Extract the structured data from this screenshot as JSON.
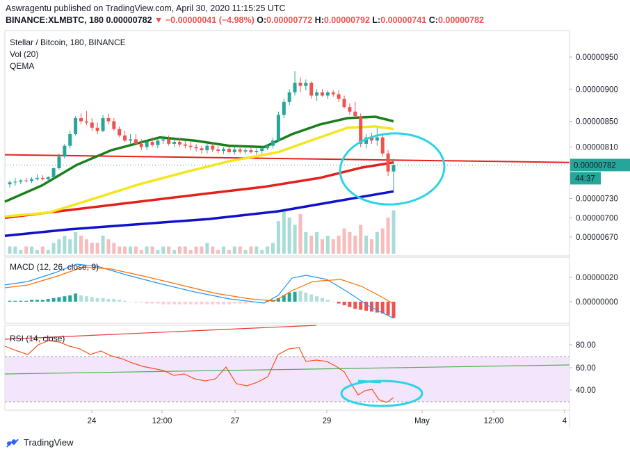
{
  "header": {
    "publisher": "Aswragentu published on TradingView.com, April 30, 2020 11:15:25 UTC",
    "symbol": "BINANCE:XLMBTC, 180",
    "last": "0.00000782",
    "change": "−0.00000041 (−4.98%)",
    "o_label": "O:",
    "o": "0.00000772",
    "h_label": "H:",
    "h": "0.00000792",
    "l_label": "L:",
    "l": "0.00000741",
    "c_label": "C:",
    "c": "0.00000782"
  },
  "legend": {
    "main": "Stellar / Bitcoin, 180, BINANCE",
    "vol": "Vol (20)",
    "qema": "QEMA",
    "macd": "MACD (12, 26, close, 9)",
    "rsi": "RSI (14, close)"
  },
  "price_axis": {
    "ticks": [
      "0.00000950",
      "0.00000900",
      "0.00000850",
      "0.00000810",
      "0.00000730",
      "0.00000700",
      "0.00000670"
    ],
    "current": "0.00000782",
    "countdown": "44:37"
  },
  "macd_axis": {
    "ticks": [
      "0.00000020",
      "0.00000000"
    ]
  },
  "rsi_axis": {
    "ticks": [
      "80.00",
      "60.00",
      "40.00"
    ]
  },
  "time_axis": {
    "ticks": [
      "24",
      "12:00",
      "27",
      "29",
      "May",
      "12:00",
      "4"
    ]
  },
  "footer": {
    "brand": "TradingView"
  },
  "colors": {
    "up": "#26a69a",
    "down": "#ef5350",
    "ema_green": "#1a7f1a",
    "ema_yellow": "#f5e61b",
    "ema_red": "#e5201b",
    "ema_blue": "#1111cc",
    "circle": "#28d4e8",
    "macd": "#2196f3",
    "signal": "#ff6d00",
    "rsi": "#f4511e",
    "rsi_band": "#f3e5fb"
  },
  "chart_data": {
    "type": "candlestick",
    "symbol": "BINANCE:XLMBTC",
    "interval": "180",
    "y_range": [
      6.5e-06,
      9.6e-06
    ],
    "candles": [
      {
        "o": 7.52,
        "h": 7.58,
        "l": 7.47,
        "c": 7.55
      },
      {
        "o": 7.55,
        "h": 7.62,
        "l": 7.5,
        "c": 7.56
      },
      {
        "o": 7.56,
        "h": 7.6,
        "l": 7.52,
        "c": 7.58
      },
      {
        "o": 7.58,
        "h": 7.62,
        "l": 7.55,
        "c": 7.57
      },
      {
        "o": 7.57,
        "h": 7.63,
        "l": 7.54,
        "c": 7.6
      },
      {
        "o": 7.6,
        "h": 7.68,
        "l": 7.58,
        "c": 7.62
      },
      {
        "o": 7.62,
        "h": 7.66,
        "l": 7.58,
        "c": 7.6
      },
      {
        "o": 7.6,
        "h": 7.65,
        "l": 7.57,
        "c": 7.63
      },
      {
        "o": 7.63,
        "h": 7.78,
        "l": 7.61,
        "c": 7.77
      },
      {
        "o": 7.77,
        "h": 8.0,
        "l": 7.75,
        "c": 7.95
      },
      {
        "o": 7.95,
        "h": 8.15,
        "l": 7.92,
        "c": 8.12
      },
      {
        "o": 8.12,
        "h": 8.35,
        "l": 8.08,
        "c": 8.3
      },
      {
        "o": 8.3,
        "h": 8.58,
        "l": 8.28,
        "c": 8.55
      },
      {
        "o": 8.55,
        "h": 8.62,
        "l": 8.45,
        "c": 8.5
      },
      {
        "o": 8.5,
        "h": 8.66,
        "l": 8.44,
        "c": 8.48
      },
      {
        "o": 8.48,
        "h": 8.55,
        "l": 8.35,
        "c": 8.4
      },
      {
        "o": 8.4,
        "h": 8.48,
        "l": 8.3,
        "c": 8.35
      },
      {
        "o": 8.35,
        "h": 8.6,
        "l": 8.33,
        "c": 8.55
      },
      {
        "o": 8.55,
        "h": 8.62,
        "l": 8.45,
        "c": 8.5
      },
      {
        "o": 8.5,
        "h": 8.55,
        "l": 8.35,
        "c": 8.38
      },
      {
        "o": 8.38,
        "h": 8.42,
        "l": 8.25,
        "c": 8.28
      },
      {
        "o": 8.28,
        "h": 8.35,
        "l": 8.18,
        "c": 8.2
      },
      {
        "o": 8.2,
        "h": 8.3,
        "l": 8.15,
        "c": 8.22
      },
      {
        "o": 8.22,
        "h": 8.3,
        "l": 8.12,
        "c": 8.15
      },
      {
        "o": 8.15,
        "h": 8.22,
        "l": 8.05,
        "c": 8.1
      },
      {
        "o": 8.1,
        "h": 8.2,
        "l": 8.05,
        "c": 8.18
      },
      {
        "o": 8.18,
        "h": 8.25,
        "l": 8.1,
        "c": 8.13
      },
      {
        "o": 8.13,
        "h": 8.22,
        "l": 8.08,
        "c": 8.2
      },
      {
        "o": 8.2,
        "h": 8.28,
        "l": 8.15,
        "c": 8.22
      },
      {
        "o": 8.22,
        "h": 8.28,
        "l": 8.12,
        "c": 8.15
      },
      {
        "o": 8.15,
        "h": 8.22,
        "l": 8.1,
        "c": 8.18
      },
      {
        "o": 8.18,
        "h": 8.24,
        "l": 8.1,
        "c": 8.14
      },
      {
        "o": 8.14,
        "h": 8.2,
        "l": 8.08,
        "c": 8.12
      },
      {
        "o": 8.12,
        "h": 8.18,
        "l": 8.05,
        "c": 8.1
      },
      {
        "o": 8.1,
        "h": 8.15,
        "l": 8.03,
        "c": 8.08
      },
      {
        "o": 8.08,
        "h": 8.12,
        "l": 8.0,
        "c": 8.05
      },
      {
        "o": 8.05,
        "h": 8.15,
        "l": 8.0,
        "c": 8.12
      },
      {
        "o": 8.12,
        "h": 8.16,
        "l": 8.02,
        "c": 8.06
      },
      {
        "o": 8.06,
        "h": 8.12,
        "l": 8.0,
        "c": 8.04
      },
      {
        "o": 8.04,
        "h": 8.1,
        "l": 7.99,
        "c": 8.07
      },
      {
        "o": 8.07,
        "h": 8.1,
        "l": 8.0,
        "c": 8.02
      },
      {
        "o": 8.02,
        "h": 8.1,
        "l": 7.98,
        "c": 8.06
      },
      {
        "o": 8.06,
        "h": 8.12,
        "l": 8.0,
        "c": 8.03
      },
      {
        "o": 8.03,
        "h": 8.08,
        "l": 7.99,
        "c": 8.05
      },
      {
        "o": 8.05,
        "h": 8.1,
        "l": 8.0,
        "c": 8.02
      },
      {
        "o": 8.02,
        "h": 8.08,
        "l": 7.98,
        "c": 8.04
      },
      {
        "o": 8.04,
        "h": 8.1,
        "l": 8.0,
        "c": 8.08
      },
      {
        "o": 8.08,
        "h": 8.15,
        "l": 8.05,
        "c": 8.12
      },
      {
        "o": 8.12,
        "h": 8.25,
        "l": 8.08,
        "c": 8.2
      },
      {
        "o": 8.2,
        "h": 8.65,
        "l": 8.18,
        "c": 8.6
      },
      {
        "o": 8.6,
        "h": 8.85,
        "l": 8.55,
        "c": 8.8
      },
      {
        "o": 8.8,
        "h": 9.0,
        "l": 8.75,
        "c": 8.95
      },
      {
        "o": 8.95,
        "h": 9.28,
        "l": 8.9,
        "c": 9.1
      },
      {
        "o": 9.1,
        "h": 9.18,
        "l": 8.95,
        "c": 9.05
      },
      {
        "o": 9.05,
        "h": 9.15,
        "l": 8.98,
        "c": 9.1
      },
      {
        "o": 9.1,
        "h": 9.12,
        "l": 8.85,
        "c": 8.9
      },
      {
        "o": 8.9,
        "h": 9.0,
        "l": 8.82,
        "c": 8.95
      },
      {
        "o": 8.95,
        "h": 9.0,
        "l": 8.88,
        "c": 8.9
      },
      {
        "o": 8.9,
        "h": 8.98,
        "l": 8.85,
        "c": 8.95
      },
      {
        "o": 8.95,
        "h": 8.98,
        "l": 8.88,
        "c": 8.92
      },
      {
        "o": 8.92,
        "h": 8.98,
        "l": 8.8,
        "c": 8.85
      },
      {
        "o": 8.85,
        "h": 8.9,
        "l": 8.7,
        "c": 8.72
      },
      {
        "o": 8.72,
        "h": 8.78,
        "l": 8.6,
        "c": 8.65
      },
      {
        "o": 8.65,
        "h": 8.8,
        "l": 8.55,
        "c": 8.58
      },
      {
        "o": 8.58,
        "h": 8.62,
        "l": 8.1,
        "c": 8.15
      },
      {
        "o": 8.15,
        "h": 8.3,
        "l": 8.08,
        "c": 8.25
      },
      {
        "o": 8.25,
        "h": 8.32,
        "l": 8.15,
        "c": 8.2
      },
      {
        "o": 8.2,
        "h": 8.4,
        "l": 8.12,
        "c": 8.25
      },
      {
        "o": 8.25,
        "h": 8.3,
        "l": 7.95,
        "c": 8.0
      },
      {
        "o": 8.0,
        "h": 8.05,
        "l": 7.65,
        "c": 7.72
      },
      {
        "o": 7.72,
        "h": 7.92,
        "l": 7.41,
        "c": 7.82
      }
    ],
    "volume": [
      2,
      2,
      1,
      2,
      2,
      1,
      2,
      1,
      3,
      4,
      5,
      4,
      6,
      5,
      4,
      3,
      3,
      5,
      4,
      3,
      2,
      2,
      2,
      2,
      1,
      2,
      2,
      1,
      2,
      2,
      1,
      2,
      2,
      1,
      2,
      2,
      3,
      2,
      1,
      2,
      1,
      2,
      2,
      1,
      2,
      2,
      1,
      2,
      3,
      9,
      12,
      10,
      8,
      11,
      6,
      5,
      6,
      4,
      5,
      4,
      5,
      7,
      6,
      5,
      8,
      5,
      4,
      6,
      7,
      10,
      12
    ],
    "overlays": [
      {
        "name": "QEMA (green)",
        "start": 7.25,
        "end": 8.55
      },
      {
        "name": "QEMA (yellow)",
        "start": 7.05,
        "end": 8.38
      },
      {
        "name": "QEMA (red)",
        "start": 7.03,
        "end": 7.86
      },
      {
        "name": "QEMA (blue)",
        "start": 6.75,
        "end": 7.41
      }
    ],
    "macd": {
      "range": [
        -5e-08,
        3.2e-07
      ],
      "note": "MACD line, signal line, histogram"
    },
    "rsi": {
      "range": [
        28,
        92
      ],
      "bands": [
        30,
        70
      ]
    }
  }
}
